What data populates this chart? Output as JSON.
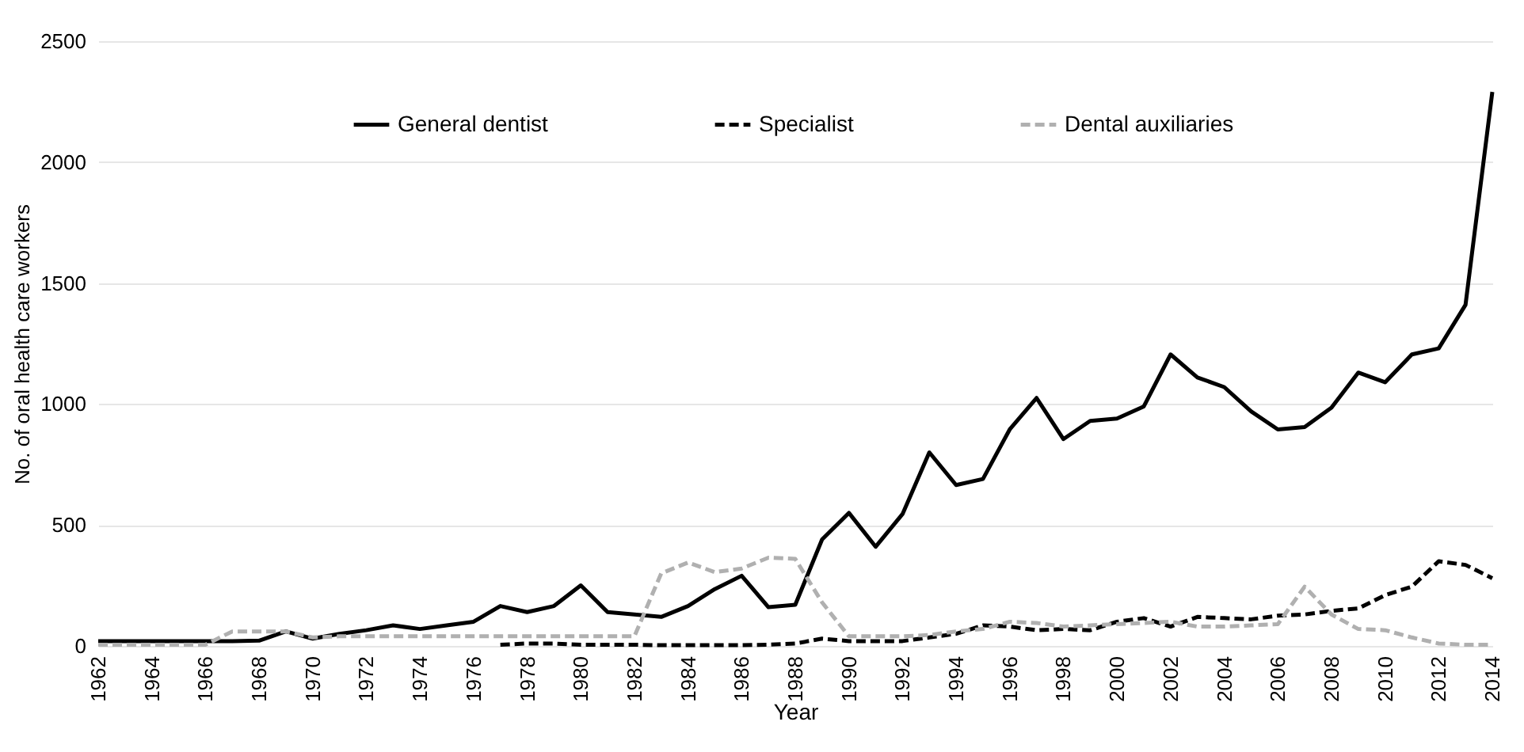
{
  "chart_data": {
    "type": "line",
    "xlabel": "Year",
    "ylabel": "No. of oral health care workers",
    "x": [
      1962,
      1963,
      1964,
      1965,
      1966,
      1967,
      1968,
      1969,
      1970,
      1971,
      1972,
      1973,
      1974,
      1975,
      1976,
      1977,
      1978,
      1979,
      1980,
      1981,
      1982,
      1983,
      1984,
      1985,
      1986,
      1987,
      1988,
      1989,
      1990,
      1991,
      1992,
      1993,
      1994,
      1995,
      1996,
      1997,
      1998,
      1999,
      2000,
      2001,
      2002,
      2003,
      2004,
      2005,
      2006,
      2007,
      2008,
      2009,
      2010,
      2011,
      2012,
      2013,
      2014
    ],
    "series": [
      {
        "name": "General dentist",
        "color": "#000000",
        "line_style": "solid",
        "values": [
          20,
          20,
          20,
          20,
          20,
          20,
          22,
          60,
          30,
          50,
          65,
          85,
          70,
          85,
          100,
          165,
          140,
          165,
          250,
          140,
          130,
          120,
          165,
          235,
          290,
          160,
          170,
          440,
          550,
          410,
          545,
          800,
          665,
          690,
          895,
          1025,
          855,
          930,
          940,
          990,
          1205,
          1110,
          1070,
          970,
          895,
          905,
          985,
          1130,
          1090,
          1205,
          1230,
          1410,
          2290
        ]
      },
      {
        "name": "Specialist",
        "color": "#000000",
        "line_style": "dashed",
        "values": [
          null,
          null,
          null,
          null,
          null,
          null,
          null,
          null,
          null,
          null,
          null,
          null,
          null,
          null,
          null,
          5,
          10,
          10,
          5,
          5,
          5,
          3,
          3,
          3,
          3,
          5,
          10,
          30,
          20,
          20,
          20,
          35,
          50,
          85,
          80,
          65,
          70,
          65,
          100,
          115,
          80,
          120,
          115,
          110,
          125,
          130,
          145,
          155,
          210,
          245,
          350,
          335,
          280
        ]
      },
      {
        "name": "Dental auxiliaries",
        "color": "#b0b0b0",
        "line_style": "dashed",
        "values": [
          5,
          5,
          5,
          5,
          5,
          60,
          60,
          60,
          35,
          40,
          40,
          40,
          40,
          40,
          40,
          40,
          40,
          40,
          40,
          40,
          40,
          300,
          345,
          305,
          320,
          365,
          360,
          180,
          40,
          40,
          40,
          45,
          60,
          70,
          100,
          95,
          80,
          85,
          90,
          95,
          100,
          80,
          80,
          85,
          90,
          245,
          130,
          70,
          65,
          35,
          10,
          5,
          5
        ]
      }
    ],
    "xlim": [
      1962,
      2014
    ],
    "xticks": [
      1962,
      1964,
      1966,
      1968,
      1970,
      1972,
      1974,
      1976,
      1978,
      1980,
      1982,
      1984,
      1986,
      1988,
      1990,
      1992,
      1994,
      1996,
      1998,
      2000,
      2002,
      2004,
      2006,
      2008,
      2010,
      2012,
      2014
    ],
    "ylim": [
      0,
      2500
    ],
    "yticks": [
      0,
      500,
      1000,
      1500,
      2000,
      2500
    ],
    "grid": "y",
    "legend": "top"
  }
}
